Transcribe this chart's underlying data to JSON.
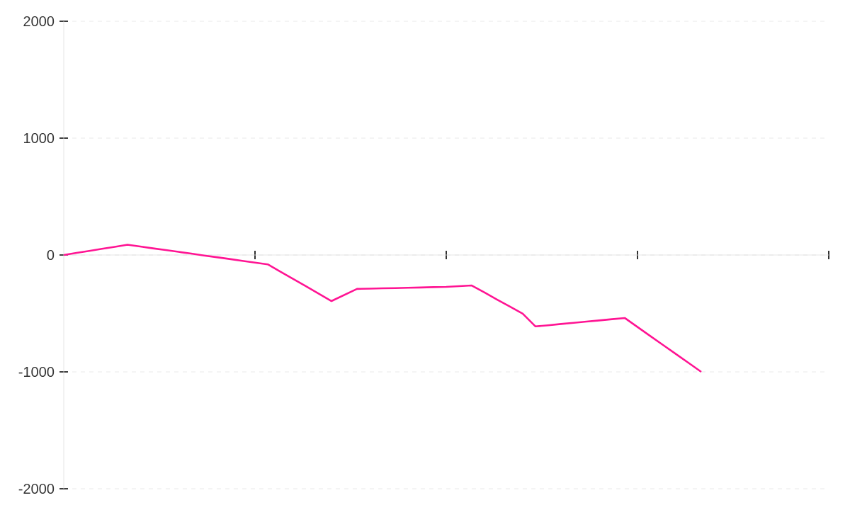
{
  "chart_data": {
    "type": "line",
    "categories": [
      null,
      null,
      null,
      null,
      null,
      null,
      null,
      null,
      null,
      null,
      null,
      null,
      null,
      null,
      null,
      null,
      null,
      null,
      null,
      null,
      null,
      null,
      null,
      null,
      null,
      null,
      null,
      null,
      null,
      null,
      null,
      null,
      null,
      null,
      null,
      null,
      null,
      null,
      null,
      null,
      null,
      null,
      null,
      null,
      null,
      null,
      null,
      null,
      null,
      null,
      null,
      null,
      null,
      null,
      null,
      null,
      null,
      null,
      null,
      null,
      null
    ],
    "series": [
      {
        "color": "#ff1493",
        "values": [
          0,
          18,
          35,
          53,
          70,
          88,
          73,
          57,
          42,
          27,
          12,
          -4,
          -19,
          -34,
          -50,
          -65,
          -80,
          -143,
          -206,
          -268,
          -331,
          -394,
          -342,
          -290,
          -288,
          -285,
          -283,
          -280,
          -278,
          -275,
          -273,
          -267,
          -261,
          -321,
          -382,
          -442,
          -502,
          -611,
          -601,
          -590,
          -580,
          -570,
          -560,
          -549,
          -539,
          -616,
          -693,
          -770,
          -846,
          -923,
          -1000,
          null,
          null,
          null,
          null,
          null,
          null,
          null,
          null,
          null,
          null
        ]
      }
    ],
    "ylim": [
      -2000,
      2000
    ],
    "yticks": [
      -2000,
      -1000,
      0,
      1000,
      2000
    ],
    "grid": "y",
    "tick_labels": "y",
    "marker": "none",
    "line_style": "solid"
  }
}
